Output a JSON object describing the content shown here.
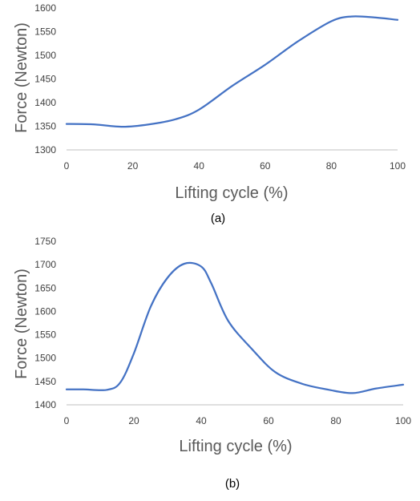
{
  "colors": {
    "series": "#4472C4",
    "text": "#595959",
    "axis": "#bfbfbf"
  },
  "chart_data": [
    {
      "type": "line",
      "caption": "(a)",
      "xlabel": "Lifting cycle (%)",
      "ylabel": "Force (Newton)",
      "xlim": [
        0,
        100
      ],
      "ylim": [
        1300,
        1600
      ],
      "xticks": [
        0,
        20,
        40,
        60,
        80,
        100
      ],
      "yticks": [
        1300,
        1350,
        1400,
        1450,
        1500,
        1550,
        1600
      ],
      "grid": false,
      "legend": "none",
      "series": [
        {
          "x": [
            0,
            8,
            17,
            25,
            33,
            40,
            50,
            60,
            70,
            80,
            86,
            93,
            100
          ],
          "values": [
            1355,
            1354,
            1349,
            1354,
            1365,
            1385,
            1435,
            1480,
            1530,
            1572,
            1582,
            1580,
            1575
          ]
        }
      ]
    },
    {
      "type": "line",
      "caption": "(b)",
      "xlabel": "Lifting cycle (%)",
      "ylabel": "Force (Newton)",
      "xlim": [
        0,
        100
      ],
      "ylim": [
        1400,
        1750
      ],
      "xticks": [
        0,
        20,
        40,
        60,
        80,
        100
      ],
      "yticks": [
        1400,
        1450,
        1500,
        1550,
        1600,
        1650,
        1700,
        1750
      ],
      "grid": false,
      "legend": "none",
      "series": [
        {
          "x": [
            0,
            5,
            12,
            16,
            20,
            25,
            30,
            35,
            40,
            43,
            48,
            55,
            62,
            70,
            78,
            85,
            92,
            100
          ],
          "values": [
            1433,
            1433,
            1432,
            1448,
            1510,
            1610,
            1672,
            1702,
            1696,
            1660,
            1580,
            1520,
            1470,
            1445,
            1432,
            1425,
            1435,
            1443
          ]
        }
      ]
    }
  ]
}
